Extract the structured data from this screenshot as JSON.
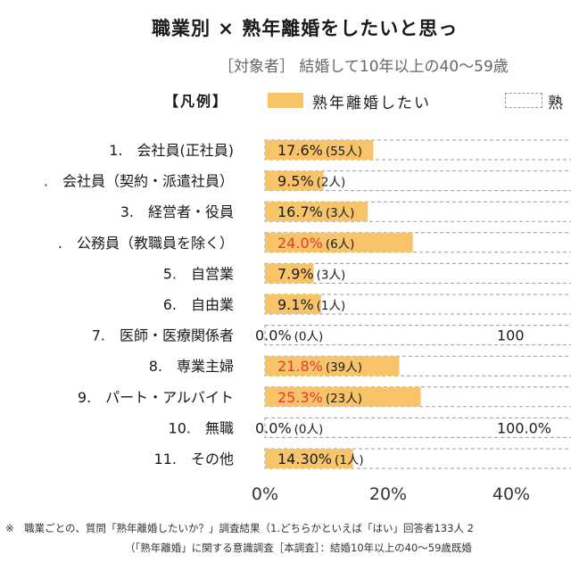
{
  "title": "職業別 × 熟年離婚をしたいと思っ",
  "subtitle": "［対象者］ 結婚して10年以上の40～59歳",
  "legend": {
    "heading": "【凡例】",
    "solid_label": "熟年離婚したい",
    "dashed_label": "熟"
  },
  "colors": {
    "bar": "#f7c46a",
    "highlight_text": "#e03c2e",
    "dashed_border": "#9a9a9a"
  },
  "chart_data": {
    "type": "bar",
    "orientation": "horizontal",
    "categories": [
      "1.　会社員(正社員)",
      ".　会社員（契約・派遣社員）",
      "3.　経営者・役員",
      ".　公務員（教職員を除く）",
      "5.　自営業",
      "6.　自由業",
      "7.　医師・医療関係者",
      "8.　専業主婦",
      "9.　パート・アルバイト",
      "10.　無職",
      "11.　その他"
    ],
    "values": [
      17.6,
      9.5,
      16.7,
      24.0,
      7.9,
      9.1,
      0.0,
      21.8,
      25.3,
      0.0,
      14.3
    ],
    "value_labels": [
      "17.6%",
      "9.5%",
      "16.7%",
      "24.0%",
      "7.9%",
      "9.1%",
      "0.0%",
      "21.8%",
      "25.3%",
      "0.0%",
      "14.30%"
    ],
    "count_labels": [
      "(55人)",
      "(2人)",
      "(3人)",
      "(6人)",
      "(3人)",
      "(1人)",
      "(0人)",
      "(39人)",
      "(23人)",
      "(0人)",
      "(1人)"
    ],
    "highlighted": [
      false,
      false,
      false,
      true,
      false,
      false,
      false,
      true,
      true,
      false,
      false
    ],
    "total_labels": [
      "",
      "",
      "",
      "",
      "",
      "",
      "100",
      "",
      "",
      "100.0%",
      ""
    ],
    "xticks": [
      "0%",
      "20%",
      "40%"
    ],
    "xtick_values": [
      0,
      20,
      40
    ],
    "xlim": [
      0,
      100
    ],
    "grid": false
  },
  "footnotes": [
    "※　職業ごとの、質問「熟年離婚したいか？」調査結果（1.どちらかといえば「はい」回答者133人 2",
    "（「熟年離婚」に関する意識調査［本調査］：結婚10年以上の40～59歳既婚"
  ]
}
